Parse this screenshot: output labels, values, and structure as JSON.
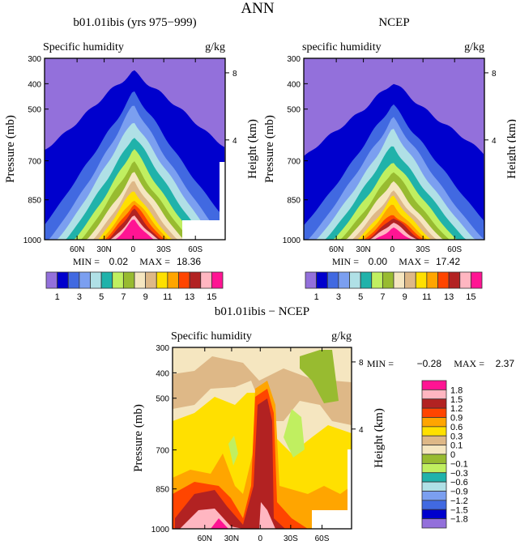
{
  "page_title": "ANN",
  "chart_data": [
    {
      "type": "contour",
      "title": "b01.01ibis (yrs 975−999)",
      "left_string": "Specific humidity",
      "right_string": "g/kg",
      "ylabel": "Pressure (mb)",
      "ylabel_right": "Height (km)",
      "y_ticks": [
        "300",
        "400",
        "500",
        "700",
        "850",
        "1000"
      ],
      "y_right_ticks": [
        "8",
        "4"
      ],
      "x_ticks": [
        "60N",
        "30N",
        "0",
        "30S",
        "60S"
      ],
      "min_label": "MIN =",
      "min_value": "0.02",
      "max_label": "MAX =",
      "max_value": "18.36",
      "levels": [
        1,
        2,
        3,
        4,
        5,
        6,
        7,
        8,
        9,
        10,
        11,
        12,
        13,
        14,
        15
      ],
      "colorbar_labels": [
        "1",
        "3",
        "5",
        "7",
        "9",
        "11",
        "13",
        "15"
      ]
    },
    {
      "type": "contour",
      "title": "NCEP",
      "left_string": "specific humidity",
      "right_string": "g/kg",
      "ylabel": "Pressure (mb)",
      "ylabel_right": "Height (km)",
      "y_ticks": [
        "300",
        "400",
        "500",
        "700",
        "850",
        "1000"
      ],
      "y_right_ticks": [
        "8",
        "4"
      ],
      "x_ticks": [
        "60N",
        "30N",
        "0",
        "30S",
        "60S"
      ],
      "min_label": "MIN =",
      "min_value": "0.00",
      "max_label": "MAX =",
      "max_value": "17.42",
      "levels": [
        1,
        2,
        3,
        4,
        5,
        6,
        7,
        8,
        9,
        10,
        11,
        12,
        13,
        14,
        15
      ],
      "colorbar_labels": [
        "1",
        "3",
        "5",
        "7",
        "9",
        "11",
        "13",
        "15"
      ]
    },
    {
      "type": "contour",
      "title": "b01.01ibis − NCEP",
      "left_string": "Specific humidity",
      "right_string": "g/kg",
      "ylabel": "Pressure (mb)",
      "ylabel_right": "Height (km)",
      "y_ticks": [
        "300",
        "400",
        "500",
        "700",
        "850",
        "1000"
      ],
      "y_right_ticks": [
        "8",
        "4"
      ],
      "x_ticks": [
        "60N",
        "30N",
        "0",
        "30S",
        "60S"
      ],
      "min_label": "MIN =",
      "min_value": "−0.28",
      "max_label": "MAX =",
      "max_value": "2.37",
      "levels": [
        -1.8,
        -1.5,
        -1.2,
        -0.9,
        -0.6,
        -0.3,
        -0.1,
        0,
        0.1,
        0.3,
        0.6,
        0.9,
        1.2,
        1.5,
        1.8
      ],
      "colorbar_labels": [
        "1.8",
        "1.5",
        "1.2",
        "0.9",
        "0.6",
        "0.3",
        "0.1",
        "0",
        "−0.1",
        "−0.3",
        "−0.6",
        "−0.9",
        "−1.2",
        "−1.5",
        "−1.8"
      ]
    }
  ],
  "colors": [
    "#9370db",
    "#0000cd",
    "#4169e1",
    "#7b9ff0",
    "#b0e0e6",
    "#20b2aa",
    "#c0ef60",
    "#98bb30",
    "#f5e6c0",
    "#deb887",
    "#ffe000",
    "#ffa500",
    "#ff4500",
    "#b22222",
    "#ffb6c1",
    "#ff1493"
  ]
}
